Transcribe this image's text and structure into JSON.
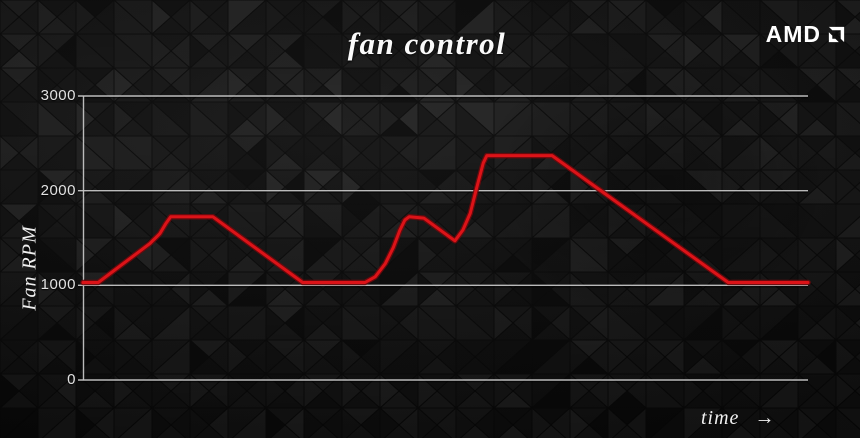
{
  "page": {
    "title": "fan control",
    "brand": "AMD"
  },
  "chart": {
    "y_axis_label": "Fan RPM",
    "x_axis_label": "time",
    "x_axis_arrow": "→"
  },
  "colors": {
    "line_red": "#dc1318",
    "line_red_dark": "#70090c",
    "grid": "#c4c4c4",
    "axis": "#c4c4c4",
    "text": "#f0f0f0",
    "background": "#131313"
  },
  "chart_data": {
    "type": "line",
    "title": "fan control",
    "xlabel": "time",
    "ylabel": "Fan RPM",
    "ylim": [
      0,
      3000
    ],
    "y_ticks": [
      3000,
      2000,
      1000,
      0
    ],
    "x_range": [
      0,
      100
    ],
    "x_tick_labels": [],
    "grid": "horizontal-only",
    "legend": "none",
    "series": [
      {
        "name": "Fan RPM",
        "color": "#dc1318",
        "points": [
          [
            0,
            1030
          ],
          [
            2.1,
            1030
          ],
          [
            9.2,
            1440
          ],
          [
            10.6,
            1545
          ],
          [
            11.4,
            1650
          ],
          [
            12.1,
            1725
          ],
          [
            17.9,
            1725
          ],
          [
            30.3,
            1030
          ],
          [
            38.9,
            1030
          ],
          [
            40.3,
            1090
          ],
          [
            41.7,
            1230
          ],
          [
            42.8,
            1400
          ],
          [
            43.7,
            1580
          ],
          [
            44.4,
            1690
          ],
          [
            45.0,
            1725
          ],
          [
            47.0,
            1710
          ],
          [
            51.3,
            1470
          ],
          [
            52.4,
            1585
          ],
          [
            53.4,
            1760
          ],
          [
            54.3,
            2030
          ],
          [
            55.2,
            2290
          ],
          [
            55.7,
            2370
          ],
          [
            64.7,
            2370
          ],
          [
            89.0,
            1030
          ],
          [
            100,
            1030
          ]
        ]
      }
    ],
    "annotations": "fan idles near 1000 RPM, ramps to ~1725 RPM plateau, returns to idle, ramps again to ~1725, dips to ~1470, climbs to ~2370 RPM plateau, then decays back to idle"
  }
}
